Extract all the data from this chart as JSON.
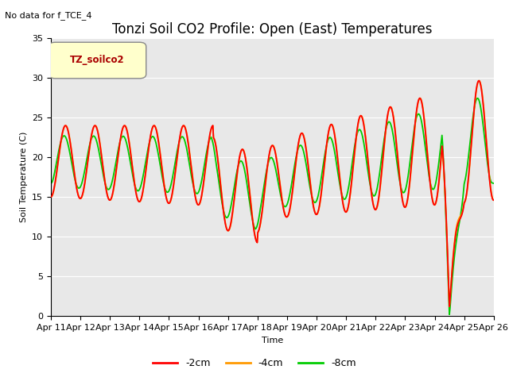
{
  "title": "Tonzi Soil CO2 Profile: Open (East) Temperatures",
  "subtitle": "No data for f_TCE_4",
  "ylabel": "Soil Temperature (C)",
  "xlabel": "Time",
  "legend_label": "TZ_soilco2",
  "ylim": [
    0,
    35
  ],
  "series_labels": [
    "-2cm",
    "-4cm",
    "-8cm"
  ],
  "series_colors": [
    "#ff0000",
    "#ff9900",
    "#00cc00"
  ],
  "background_color": "#ffffff",
  "plot_bg_color": "#e8e8e8",
  "xtick_labels": [
    "Apr 11",
    "Apr 12",
    "Apr 13",
    "Apr 14",
    "Apr 15",
    "Apr 16",
    "Apr 17",
    "Apr 18",
    "Apr 19",
    "Apr 20",
    "Apr 21",
    "Apr 22",
    "Apr 23",
    "Apr 24",
    "Apr 25",
    "Apr 26"
  ],
  "title_fontsize": 12,
  "axis_fontsize": 8,
  "legend_box_color": "#ffffcc",
  "legend_text_color": "#aa0000"
}
